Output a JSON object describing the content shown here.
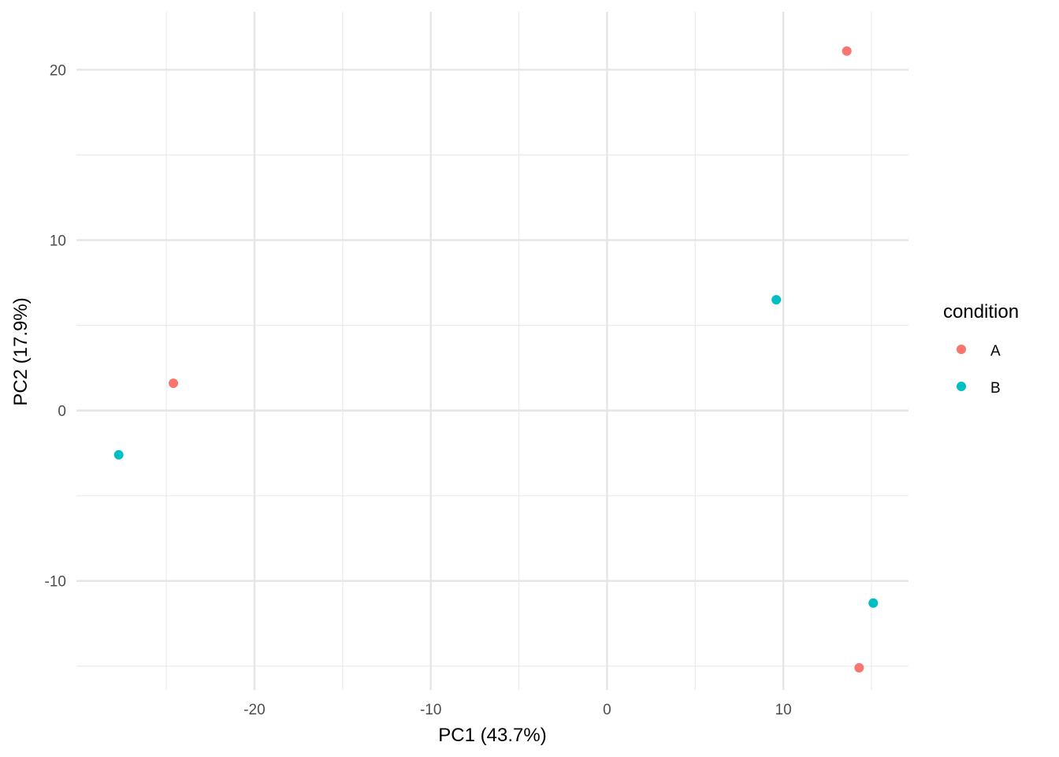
{
  "chart_data": {
    "type": "scatter",
    "title": "",
    "xlabel": "PC1 (43.7%)",
    "ylabel": "PC2 (17.9%)",
    "xlim": [
      -30.1,
      17.1
    ],
    "ylim": [
      -16.4,
      23.4
    ],
    "xticks": [
      -20,
      -10,
      0,
      10
    ],
    "xticks_minor": [
      -25,
      -15,
      -5,
      5,
      15
    ],
    "yticks": [
      -10,
      0,
      10,
      20
    ],
    "yticks_minor": [
      -15,
      -5,
      5,
      15
    ],
    "grid": true,
    "legend": {
      "title": "condition",
      "position": "right",
      "entries": [
        {
          "name": "A",
          "color": "#F8766D"
        },
        {
          "name": "B",
          "color": "#00BFC4"
        }
      ]
    },
    "series": [
      {
        "name": "A",
        "color": "#F8766D",
        "points": [
          {
            "x": -24.6,
            "y": 1.6
          },
          {
            "x": 13.6,
            "y": 21.1
          },
          {
            "x": 14.3,
            "y": -15.1
          }
        ]
      },
      {
        "name": "B",
        "color": "#00BFC4",
        "points": [
          {
            "x": -27.7,
            "y": -2.6
          },
          {
            "x": 9.6,
            "y": 6.5
          },
          {
            "x": 15.1,
            "y": -11.3
          }
        ]
      }
    ]
  }
}
